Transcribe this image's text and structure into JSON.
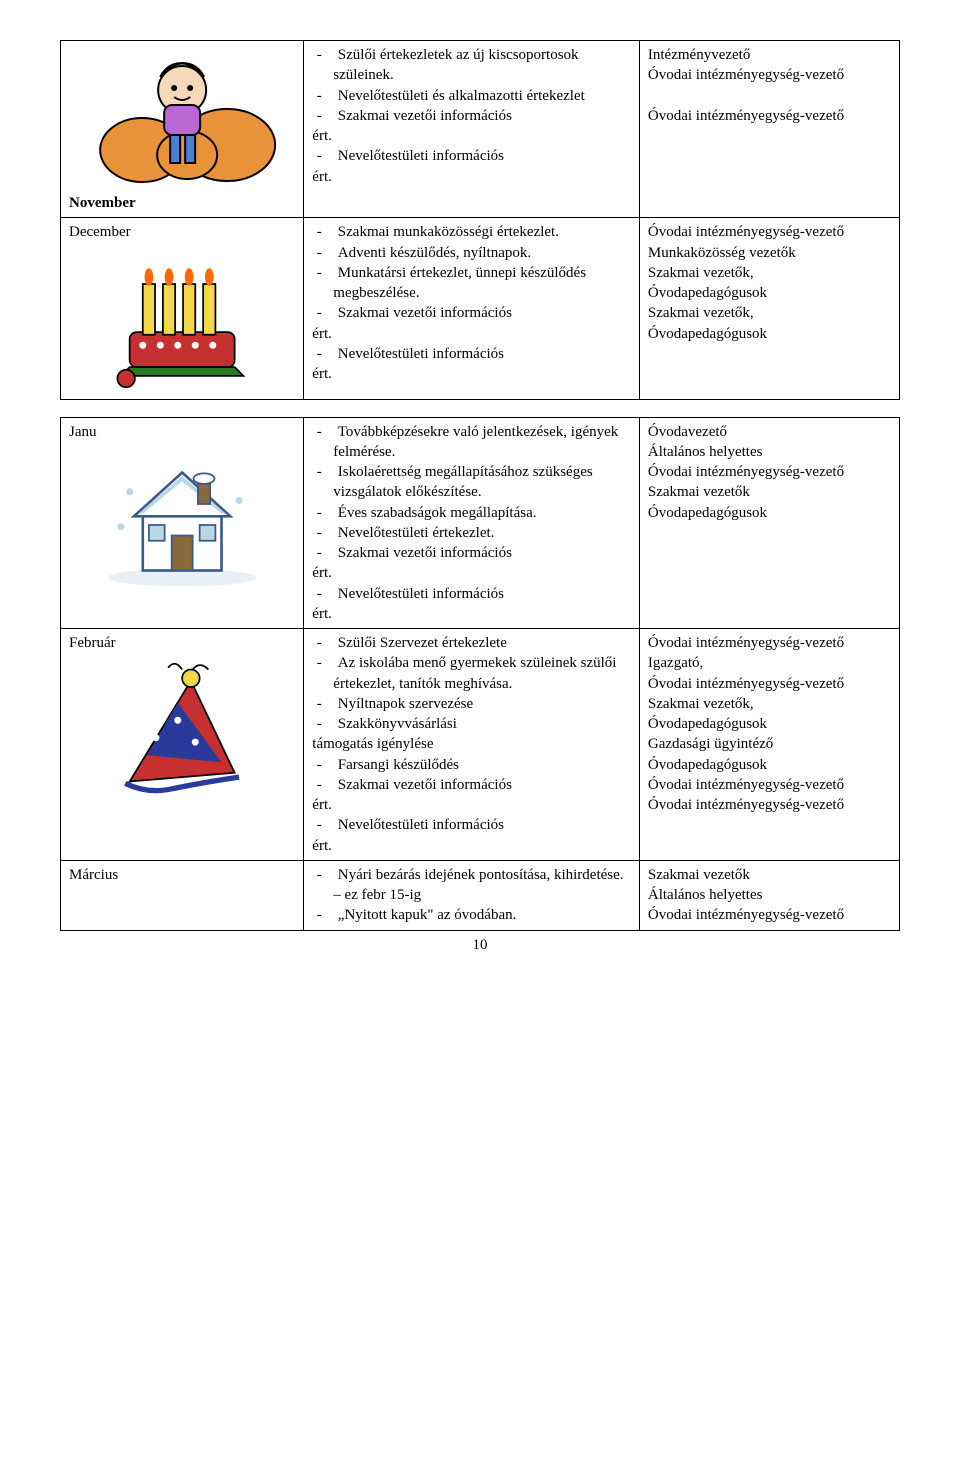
{
  "page_number": "10",
  "rows": [
    {
      "month": "November",
      "clipart": "pumpkins",
      "tasks": [
        "Szülői értekezletek az új kiscsoportosok szüleinek.",
        "Nevelőtestületi és alkalmazotti értekezlet",
        "Szakmai vezetői információs",
        {
          "plain": "ért."
        },
        "Nevelőtestületi információs",
        {
          "plain": "ért."
        }
      ],
      "responsibles": [
        "Intézményvezető",
        "Óvodai intézményegység-vezető",
        "",
        "Óvodai intézményegység-vezető"
      ]
    },
    {
      "month": "December",
      "clipart": "advent",
      "tasks": [
        "Szakmai munkaközösségi értekezlet.",
        "Adventi készülődés, nyíltnapok.",
        "Munkatársi értekezlet, ünnepi készülődés megbeszélése.",
        "Szakmai vezetői információs",
        {
          "plain": "ért."
        },
        "Nevelőtestületi információs",
        {
          "plain": "ért."
        }
      ],
      "responsibles": [
        "Óvodai intézményegység-vezető",
        "Munkaközösség vezetők",
        "Szakmai vezetők,",
        "Óvodapedagógusok",
        "Szakmai vezetők,",
        "Óvodapedagógusok"
      ]
    },
    {
      "month": "Janu",
      "clipart": "house",
      "tasks": [
        "Továbbképzésekre való jelentkezések, igények felmérése.",
        "Iskolaérettség megállapításához szükséges vizsgálatok előkészítése.",
        "Éves szabadságok megállapítása.",
        "Nevelőtestületi értekezlet.",
        "Szakmai vezetői információs",
        {
          "plain": "ért."
        },
        "Nevelőtestületi információs",
        {
          "plain": "ért."
        }
      ],
      "responsibles": [
        "Óvodavezető",
        " Általános helyettes",
        "Óvodai intézményegység-vezető",
        "Szakmai vezetők",
        "Óvodapedagógusok"
      ]
    },
    {
      "month": "Február",
      "clipart": "partyhat",
      "tasks": [
        "Szülői Szervezet értekezlete",
        "Az iskolába menő gyermekek szüleinek szülői értekezlet, tanítók meghívása.",
        "Nyíltnapok szervezése",
        "Szakkönyvvásárlási",
        {
          "plain": "támogatás igénylése"
        },
        "Farsangi készülődés",
        "Szakmai vezetői információs",
        {
          "plain": "ért."
        },
        "Nevelőtestületi információs",
        {
          "plain": "ért."
        }
      ],
      "responsibles": [
        "Óvodai intézményegység-vezető",
        "Igazgató,",
        "Óvodai intézményegység-vezető",
        "Szakmai vezetők,",
        "Óvodapedagógusok",
        "Gazdasági ügyintéző",
        "Óvodapedagógusok",
        "Óvodai intézményegység-vezető",
        "Óvodai intézményegység-vezető"
      ]
    },
    {
      "month": "Március",
      "clipart": "",
      "tasks": [
        "Nyári bezárás idejének pontosítása, kihirdetése. – ez febr 15-ig",
        "„Nyitott kapuk\" az óvodában."
      ],
      "responsibles": [
        "Szakmai vezetők",
        "Általános helyettes",
        "Óvodai intézményegység-vezető"
      ]
    }
  ],
  "clipart_svgs": {
    "pumpkins": "<svg viewBox='0 0 200 140'><ellipse cx='60' cy='105' rx='42' ry='32' fill='#e8923a' stroke='#000' stroke-width='2'/><ellipse cx='145' cy='100' rx='48' ry='36' fill='#e8923a' stroke='#000' stroke-width='2'/><ellipse cx='105' cy='110' rx='30' ry='24' fill='#e8923a' stroke='#000' stroke-width='2'/><circle cx='100' cy='45' r='24' fill='#f5d9b8' stroke='#000' stroke-width='2'/><path d='M78 32 Q100 5 122 32 Q115 18 100 18 Q85 18 78 32' fill='#f2d94a' stroke='#000' stroke-width='2'/><rect x='82' y='60' width='36' height='30' rx='8' fill='#b968d6' stroke='#000' stroke-width='2'/><rect x='88' y='90' width='10' height='28' fill='#4a7fd6' stroke='#000' stroke-width='2'/><rect x='103' y='90' width='10' height='28' fill='#4a7fd6' stroke='#000' stroke-width='2'/><ellipse cx='92' cy='43' rx='3' ry='3' fill='#000'/><ellipse cx='108' cy='43' rx='3' ry='3' fill='#000'/><path d='M92 52 Q100 58 108 52' stroke='#000' stroke-width='2' fill='none'/></svg>",
    "advent": "<svg viewBox='0 0 200 160'><rect x='40' y='95' width='120' height='40' rx='8' fill='#c73030' stroke='#000' stroke-width='2'/><path d='M40 135 L30 145 L170 145 L160 135 Z' fill='#2a7a2a' stroke='#000' stroke-width='2'/><rect x='55' y='40' width='14' height='58' fill='#f2d94a' stroke='#000' stroke-width='2'/><rect x='78' y='40' width='14' height='58' fill='#f2d94a' stroke='#000' stroke-width='2'/><rect x='101' y='40' width='14' height='58' fill='#f2d94a' stroke='#000' stroke-width='2'/><rect x='124' y='40' width='14' height='58' fill='#f2d94a' stroke='#000' stroke-width='2'/><ellipse cx='62' cy='32' rx='5' ry='10' fill='#ff6a00'/><ellipse cx='85' cy='32' rx='5' ry='10' fill='#ff6a00'/><ellipse cx='108' cy='32' rx='5' ry='10' fill='#ff6a00'/><ellipse cx='131' cy='32' rx='5' ry='10' fill='#ff6a00'/><circle cx='36' cy='148' r='10' fill='#c73030' stroke='#000' stroke-width='2'/><circle cx='55' cy='110' r='4' fill='#fff'/><circle cx='75' cy='110' r='4' fill='#fff'/><circle cx='95' cy='110' r='4' fill='#fff'/><circle cx='115' cy='110' r='4' fill='#fff'/><circle cx='135' cy='110' r='4' fill='#fff'/></svg>",
    "house": "<svg viewBox='0 0 200 160'><ellipse cx='100' cy='148' rx='85' ry='10' fill='#e6f0f5'/><rect x='55' y='75' width='90' height='65' fill='#fff' stroke='#3a5a8a' stroke-width='3'/><polygon points='45,78 100,28 155,78' fill='#fff' stroke='#3a5a8a' stroke-width='3'/><polygon points='50,75 100,32 150,75 145,75 100,38 55,75' fill='#b8d8e8'/><rect x='88' y='100' width='24' height='40' fill='#8a6a3a' stroke='#3a5a8a' stroke-width='2'/><rect x='62' y='88' width='18' height='18' fill='#b8d8e8' stroke='#3a5a8a' stroke-width='2'/><rect x='120' y='88' width='18' height='18' fill='#b8d8e8' stroke='#3a5a8a' stroke-width='2'/><rect x='118' y='38' width='14' height='26' fill='#8a6a3a' stroke='#3a5a8a' stroke-width='2'/><ellipse cx='125' cy='35' rx='12' ry='6' fill='#fff' stroke='#3a5a8a' stroke-width='2'/><circle cx='40' cy='50' r='4' fill='#b8d8e8'/><circle cx='165' cy='60' r='4' fill='#b8d8e8'/><circle cx='30' cy='90' r='4' fill='#b8d8e8'/></svg>",
    "partyhat": "<svg viewBox='0 0 200 160'><polygon points='40,140 110,25 160,130' fill='#c73030' stroke='#000' stroke-width='2'/><polygon points='60,110 95,50 145,118' fill='#2a3a9a'/><circle cx='110' cy='22' r='10' fill='#f2d94a' stroke='#000' stroke-width='2'/><path d='M35 142 Q60 155 90 148 Q130 140 165 135' stroke='#2a3a9a' stroke-width='6' fill='none'/><circle cx='70' cy='90' r='4' fill='#fff'/><circle cx='95' cy='70' r='4' fill='#fff'/><circle cx='115' cy='95' r='4' fill='#fff'/><path d='M112 12 Q120 2 130 12' stroke='#000' stroke-width='2' fill='none'/><path d='M100 12 Q92 0 84 10' stroke='#000' stroke-width='2' fill='none'/></svg>"
  }
}
